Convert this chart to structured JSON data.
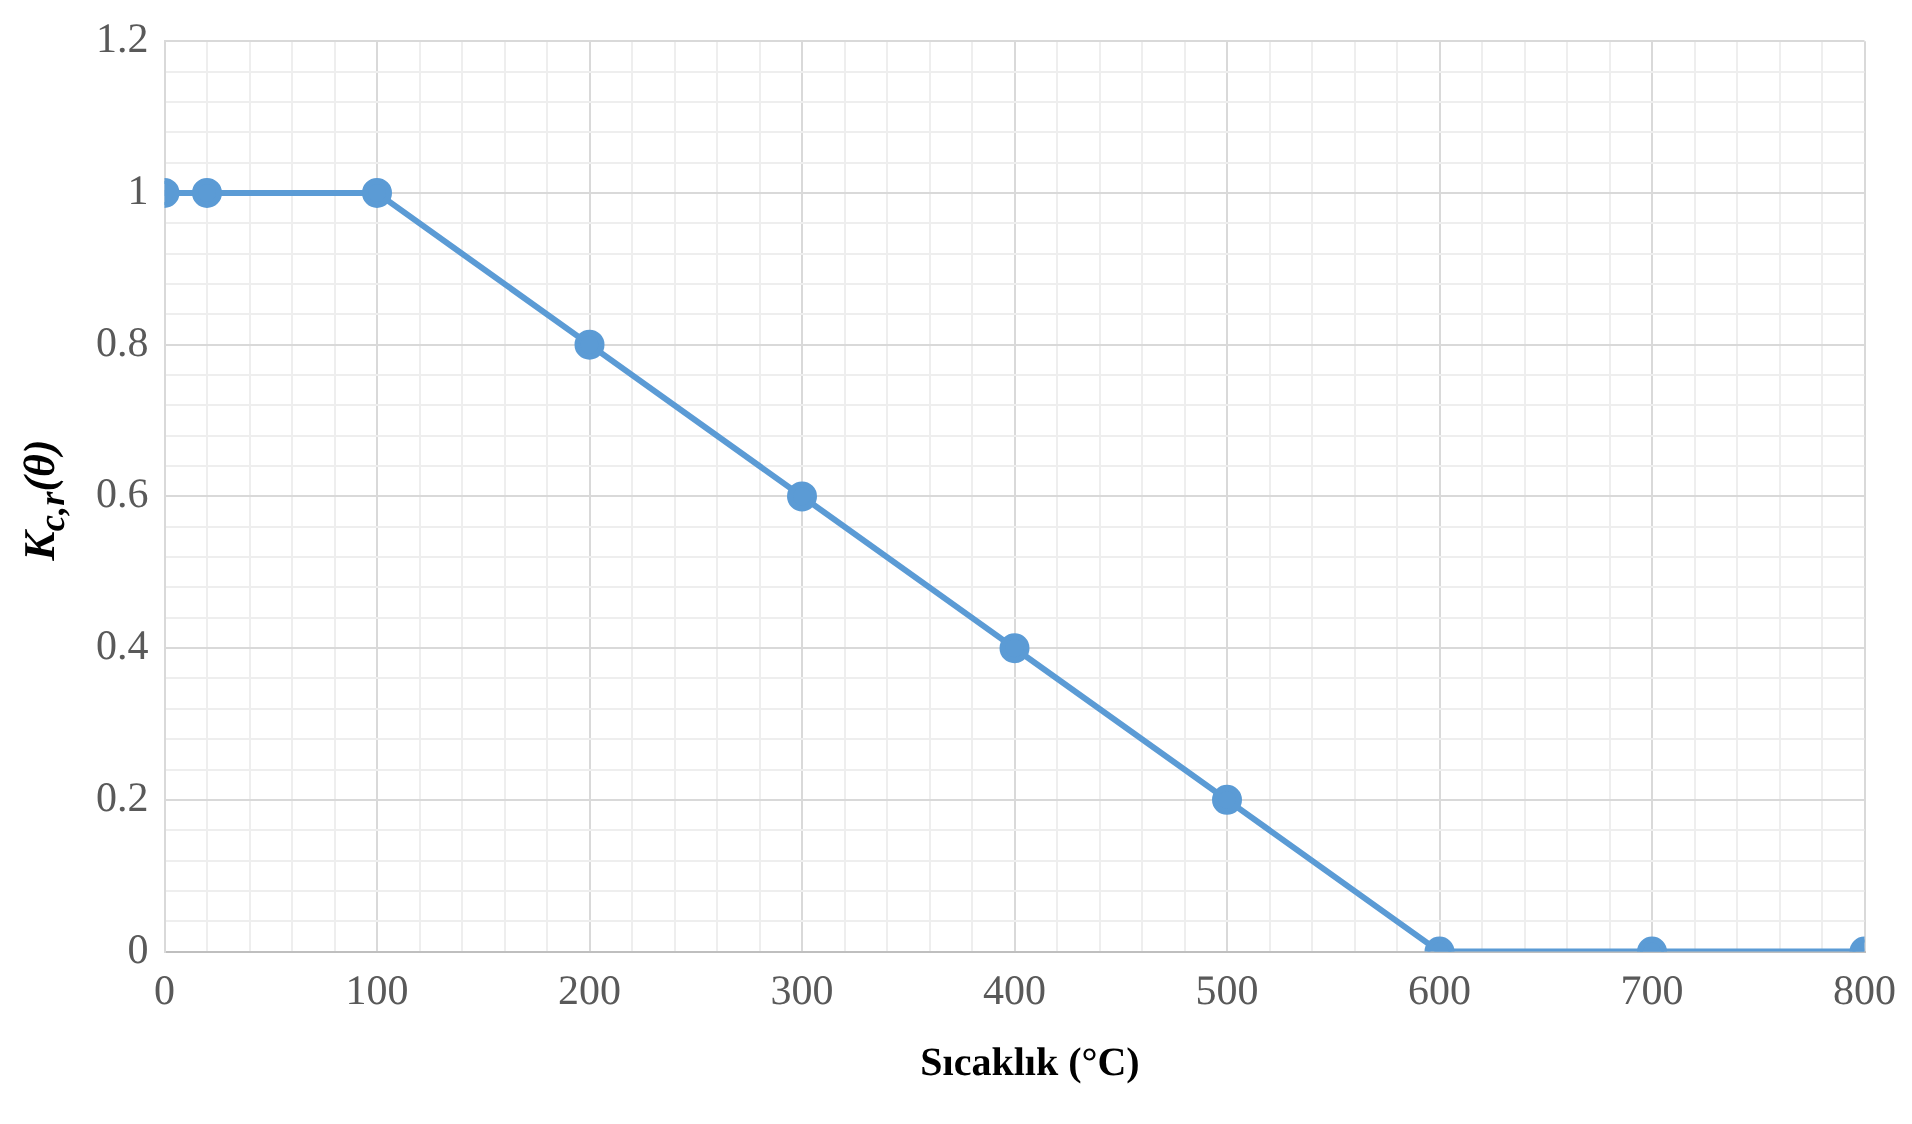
{
  "chart_data": {
    "type": "line",
    "xlabel": "Sıcaklık (°C)",
    "ylabel": "K$_{c,r}$(θ)",
    "x": [
      0,
      20,
      100,
      200,
      300,
      400,
      500,
      600,
      700,
      800
    ],
    "series": [
      {
        "color": "#5b9bd5",
        "values": [
          1,
          1,
          1,
          0.8,
          0.6,
          0.4,
          0.2,
          0,
          0,
          0
        ]
      }
    ],
    "xlim": [
      0,
      800
    ],
    "xticks": [
      0,
      {
        "value": 20,
        "label": null
      },
      {
        "value": 40,
        "label": null
      },
      {
        "value": 60,
        "label": null
      },
      {
        "value": 80,
        "label": null
      },
      100,
      {
        "value": 120,
        "label": null
      },
      {
        "value": 140,
        "label": null
      },
      {
        "value": 160,
        "label": null
      },
      {
        "value": 180,
        "label": null
      },
      200,
      {
        "value": 220,
        "label": null
      },
      {
        "value": 240,
        "label": null
      },
      {
        "value": 260,
        "label": null
      },
      {
        "value": 280,
        "label": null
      },
      300,
      {
        "value": 320,
        "label": null
      },
      {
        "value": 340,
        "label": null
      },
      {
        "value": 360,
        "label": null
      },
      {
        "value": 380,
        "label": null
      },
      400,
      {
        "value": 420,
        "label": null
      },
      {
        "value": 440,
        "label": null
      },
      {
        "value": 460,
        "label": null
      },
      {
        "value": 480,
        "label": null
      },
      500,
      {
        "value": 520,
        "label": null
      },
      {
        "value": 540,
        "label": null
      },
      {
        "value": 560,
        "label": null
      },
      {
        "value": 580,
        "label": null
      },
      600,
      {
        "value": 620,
        "label": null
      },
      {
        "value": 640,
        "label": null
      },
      {
        "value": 660,
        "label": null
      },
      {
        "value": 680,
        "label": null
      },
      700,
      {
        "value": 720,
        "label": null
      },
      {
        "value": 740,
        "label": null
      },
      {
        "value": 760,
        "label": null
      },
      {
        "value": 780,
        "label": null
      },
      800
    ],
    "ylim": [
      0,
      1.2
    ],
    "yticks": [
      0,
      {
        "value": 0.04,
        "label": null
      },
      {
        "value": 0.08,
        "label": null
      },
      {
        "value": 0.12,
        "label": null
      },
      {
        "value": 0.16,
        "label": null
      },
      0.2,
      {
        "value": 0.24,
        "label": null
      },
      {
        "value": 0.28,
        "label": null
      },
      {
        "value": 0.32,
        "label": null
      },
      {
        "value": 0.36,
        "label": null
      },
      0.4,
      {
        "value": 0.44,
        "label": null
      },
      {
        "value": 0.48,
        "label": null
      },
      {
        "value": 0.52,
        "label": null
      },
      {
        "value": 0.56,
        "label": null
      },
      0.6,
      {
        "value": 0.64,
        "label": null
      },
      {
        "value": 0.68,
        "label": null
      },
      {
        "value": 0.72,
        "label": null
      },
      {
        "value": 0.76,
        "label": null
      },
      0.8,
      {
        "value": 0.84,
        "label": null
      },
      {
        "value": 0.88,
        "label": null
      },
      {
        "value": 0.92,
        "label": null
      },
      {
        "value": 0.96,
        "label": null
      },
      1,
      {
        "value": 1.04,
        "label": null
      },
      {
        "value": 1.08,
        "label": null
      },
      {
        "value": 1.12,
        "label": null
      },
      {
        "value": 1.16,
        "label": null
      },
      1.2
    ],
    "grid": true,
    "marker": "circle",
    "line_style": "solid",
    "legend": false
  }
}
